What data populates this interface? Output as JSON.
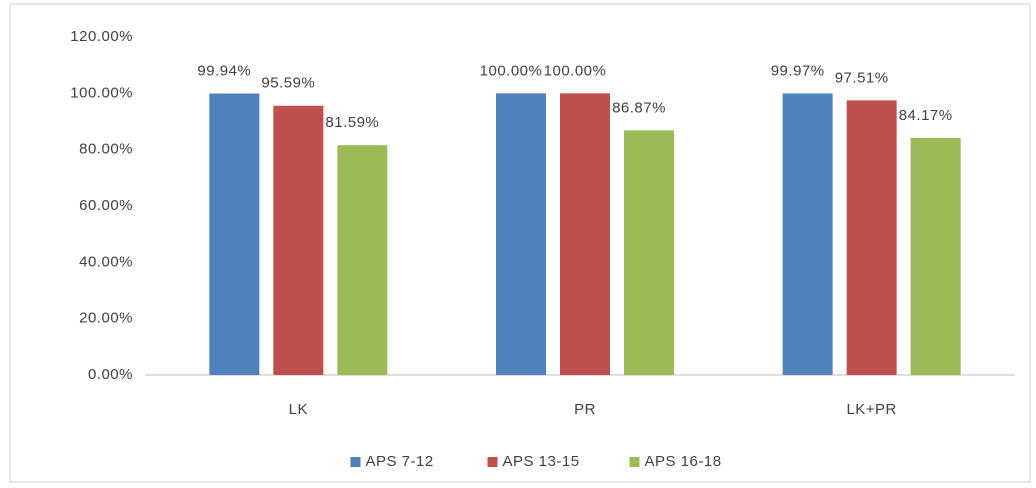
{
  "chart_data": {
    "type": "bar",
    "categories": [
      "LK",
      "PR",
      "LK+PR"
    ],
    "series": [
      {
        "name": "APS 7-12",
        "color": "#4f81bd",
        "values": [
          99.94,
          100.0,
          99.97
        ],
        "value_labels": [
          "99.94%",
          "100.00%",
          "99.97%"
        ]
      },
      {
        "name": "APS 13-15",
        "color": "#c0504d",
        "values": [
          95.59,
          100.0,
          97.51
        ],
        "value_labels": [
          "95.59%",
          "100.00%",
          "97.51%"
        ]
      },
      {
        "name": "APS 16-18",
        "color": "#9bbb59",
        "values": [
          81.59,
          86.87,
          84.17
        ],
        "value_labels": [
          "81.59%",
          "86.87%",
          "84.17%"
        ]
      }
    ],
    "ylim": [
      0,
      120
    ],
    "yticks": [
      {
        "value": 0,
        "label": "0.00%"
      },
      {
        "value": 20,
        "label": "20.00%"
      },
      {
        "value": 40,
        "label": "40.00%"
      },
      {
        "value": 60,
        "label": "60.00%"
      },
      {
        "value": 80,
        "label": "80.00%"
      },
      {
        "value": 100,
        "label": "100.00%"
      },
      {
        "value": 120,
        "label": "120.00%"
      }
    ],
    "grid": false,
    "legend": "bottom"
  }
}
